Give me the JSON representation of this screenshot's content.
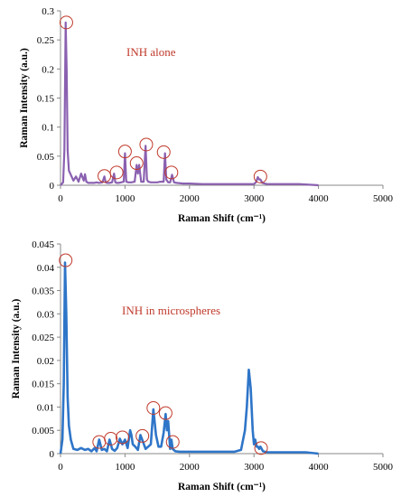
{
  "chart_data": [
    {
      "type": "line",
      "title": "",
      "annotation": "INH alone",
      "xlabel": "Raman  Shift (cm⁻¹)",
      "ylabel": "Raman  Intensity  (a.u.)",
      "xlim": [
        0,
        5000
      ],
      "ylim": [
        0,
        0.3
      ],
      "xticks": [
        0,
        1000,
        2000,
        3000,
        4000,
        5000
      ],
      "yticks": [
        "0",
        "0.05",
        "0.1",
        "0.15",
        "0.2",
        "0.25",
        "0.3"
      ],
      "grid": false,
      "colors": {
        "line": "#8a60b0",
        "marker": "#c0392b",
        "annotation": "#c0392b"
      },
      "series": [
        {
          "x": [
            0,
            40,
            60,
            80,
            95,
            110,
            130,
            160,
            200,
            240,
            280,
            320,
            360,
            380,
            400,
            430,
            470,
            520,
            560,
            600,
            650,
            680,
            700,
            720,
            760,
            800,
            830,
            850,
            870,
            900,
            940,
            980,
            1000,
            1020,
            1050,
            1100,
            1150,
            1180,
            1200,
            1220,
            1250,
            1290,
            1320,
            1340,
            1360,
            1400,
            1450,
            1500,
            1550,
            1600,
            1620,
            1640,
            1670,
            1700,
            1730,
            1760,
            1800,
            1900,
            2000,
            2200,
            2500,
            2800,
            3000,
            3030,
            3060,
            3080,
            3100,
            3130,
            3200,
            3400,
            3700,
            4000
          ],
          "y": [
            0.0,
            0.005,
            0.06,
            0.28,
            0.2,
            0.06,
            0.025,
            0.018,
            0.008,
            0.015,
            0.006,
            0.02,
            0.008,
            0.019,
            0.006,
            0.004,
            0.004,
            0.004,
            0.005,
            0.004,
            0.005,
            0.015,
            0.005,
            0.004,
            0.004,
            0.005,
            0.02,
            0.005,
            0.004,
            0.004,
            0.005,
            0.006,
            0.055,
            0.006,
            0.005,
            0.005,
            0.006,
            0.035,
            0.02,
            0.035,
            0.006,
            0.006,
            0.068,
            0.01,
            0.006,
            0.005,
            0.005,
            0.005,
            0.006,
            0.006,
            0.055,
            0.01,
            0.005,
            0.005,
            0.018,
            0.005,
            0.004,
            0.003,
            0.003,
            0.002,
            0.002,
            0.002,
            0.002,
            0.005,
            0.014,
            0.01,
            0.01,
            0.004,
            0.002,
            0.002,
            0.002,
            0.0
          ]
        }
      ],
      "markers": [
        {
          "x": 90,
          "y": 0.28
        },
        {
          "x": 680,
          "y": 0.016
        },
        {
          "x": 870,
          "y": 0.022
        },
        {
          "x": 1000,
          "y": 0.058
        },
        {
          "x": 1180,
          "y": 0.038
        },
        {
          "x": 1330,
          "y": 0.07
        },
        {
          "x": 1600,
          "y": 0.057
        },
        {
          "x": 1720,
          "y": 0.022
        },
        {
          "x": 3100,
          "y": 0.015
        }
      ]
    },
    {
      "type": "line",
      "title": "",
      "annotation": "INH in microspheres",
      "xlabel": "Raman  Shift (cm⁻¹)",
      "ylabel": "Raman  Intensity  (a.u.)",
      "xlim": [
        0,
        5000
      ],
      "ylim": [
        0,
        0.045
      ],
      "xticks": [
        0,
        1000,
        2000,
        3000,
        4000,
        5000
      ],
      "yticks": [
        "0",
        "0.005",
        "0.01",
        "0.015",
        "0.02",
        "0.025",
        "0.03",
        "0.035",
        "0.04",
        "0.045"
      ],
      "grid": false,
      "colors": {
        "line": "#2e75c8",
        "marker": "#c0392b",
        "annotation": "#c0392b"
      },
      "series": [
        {
          "x": [
            0,
            30,
            50,
            70,
            90,
            110,
            130,
            160,
            200,
            260,
            320,
            380,
            430,
            480,
            530,
            560,
            600,
            640,
            680,
            720,
            760,
            800,
            840,
            880,
            920,
            960,
            1000,
            1040,
            1080,
            1100,
            1120,
            1160,
            1200,
            1240,
            1280,
            1320,
            1360,
            1400,
            1440,
            1480,
            1520,
            1560,
            1600,
            1630,
            1650,
            1670,
            1700,
            1720,
            1740,
            1780,
            1850,
            2000,
            2200,
            2500,
            2700,
            2800,
            2860,
            2890,
            2920,
            2950,
            2980,
            3000,
            3020,
            3040,
            3060,
            3080,
            3100,
            3140,
            3200,
            3400,
            3600,
            3800,
            4000
          ],
          "y": [
            0.0,
            0.003,
            0.015,
            0.041,
            0.03,
            0.012,
            0.006,
            0.003,
            0.001,
            0.0008,
            0.0012,
            0.0008,
            0.001,
            0.0005,
            0.0012,
            0.0005,
            0.003,
            0.0008,
            0.001,
            0.0005,
            0.003,
            0.001,
            0.0006,
            0.0012,
            0.0032,
            0.002,
            0.003,
            0.0012,
            0.005,
            0.004,
            0.002,
            0.0015,
            0.0008,
            0.004,
            0.0025,
            0.001,
            0.0015,
            0.002,
            0.0095,
            0.004,
            0.0015,
            0.0015,
            0.0045,
            0.0085,
            0.005,
            0.007,
            0.001,
            0.003,
            0.001,
            0.0005,
            0.0004,
            0.0004,
            0.0004,
            0.0004,
            0.0004,
            0.0008,
            0.005,
            0.01,
            0.018,
            0.014,
            0.005,
            0.002,
            0.003,
            0.0015,
            0.0015,
            0.001,
            0.0015,
            0.0005,
            0.0003,
            0.0003,
            0.0003,
            0.0003,
            0.0
          ]
        }
      ],
      "markers": [
        {
          "x": 80,
          "y": 0.0415
        },
        {
          "x": 600,
          "y": 0.0025
        },
        {
          "x": 780,
          "y": 0.0032
        },
        {
          "x": 960,
          "y": 0.0035
        },
        {
          "x": 1270,
          "y": 0.0038
        },
        {
          "x": 1440,
          "y": 0.0098
        },
        {
          "x": 1630,
          "y": 0.0087
        },
        {
          "x": 1740,
          "y": 0.0025
        },
        {
          "x": 3110,
          "y": 0.0012
        }
      ]
    }
  ]
}
